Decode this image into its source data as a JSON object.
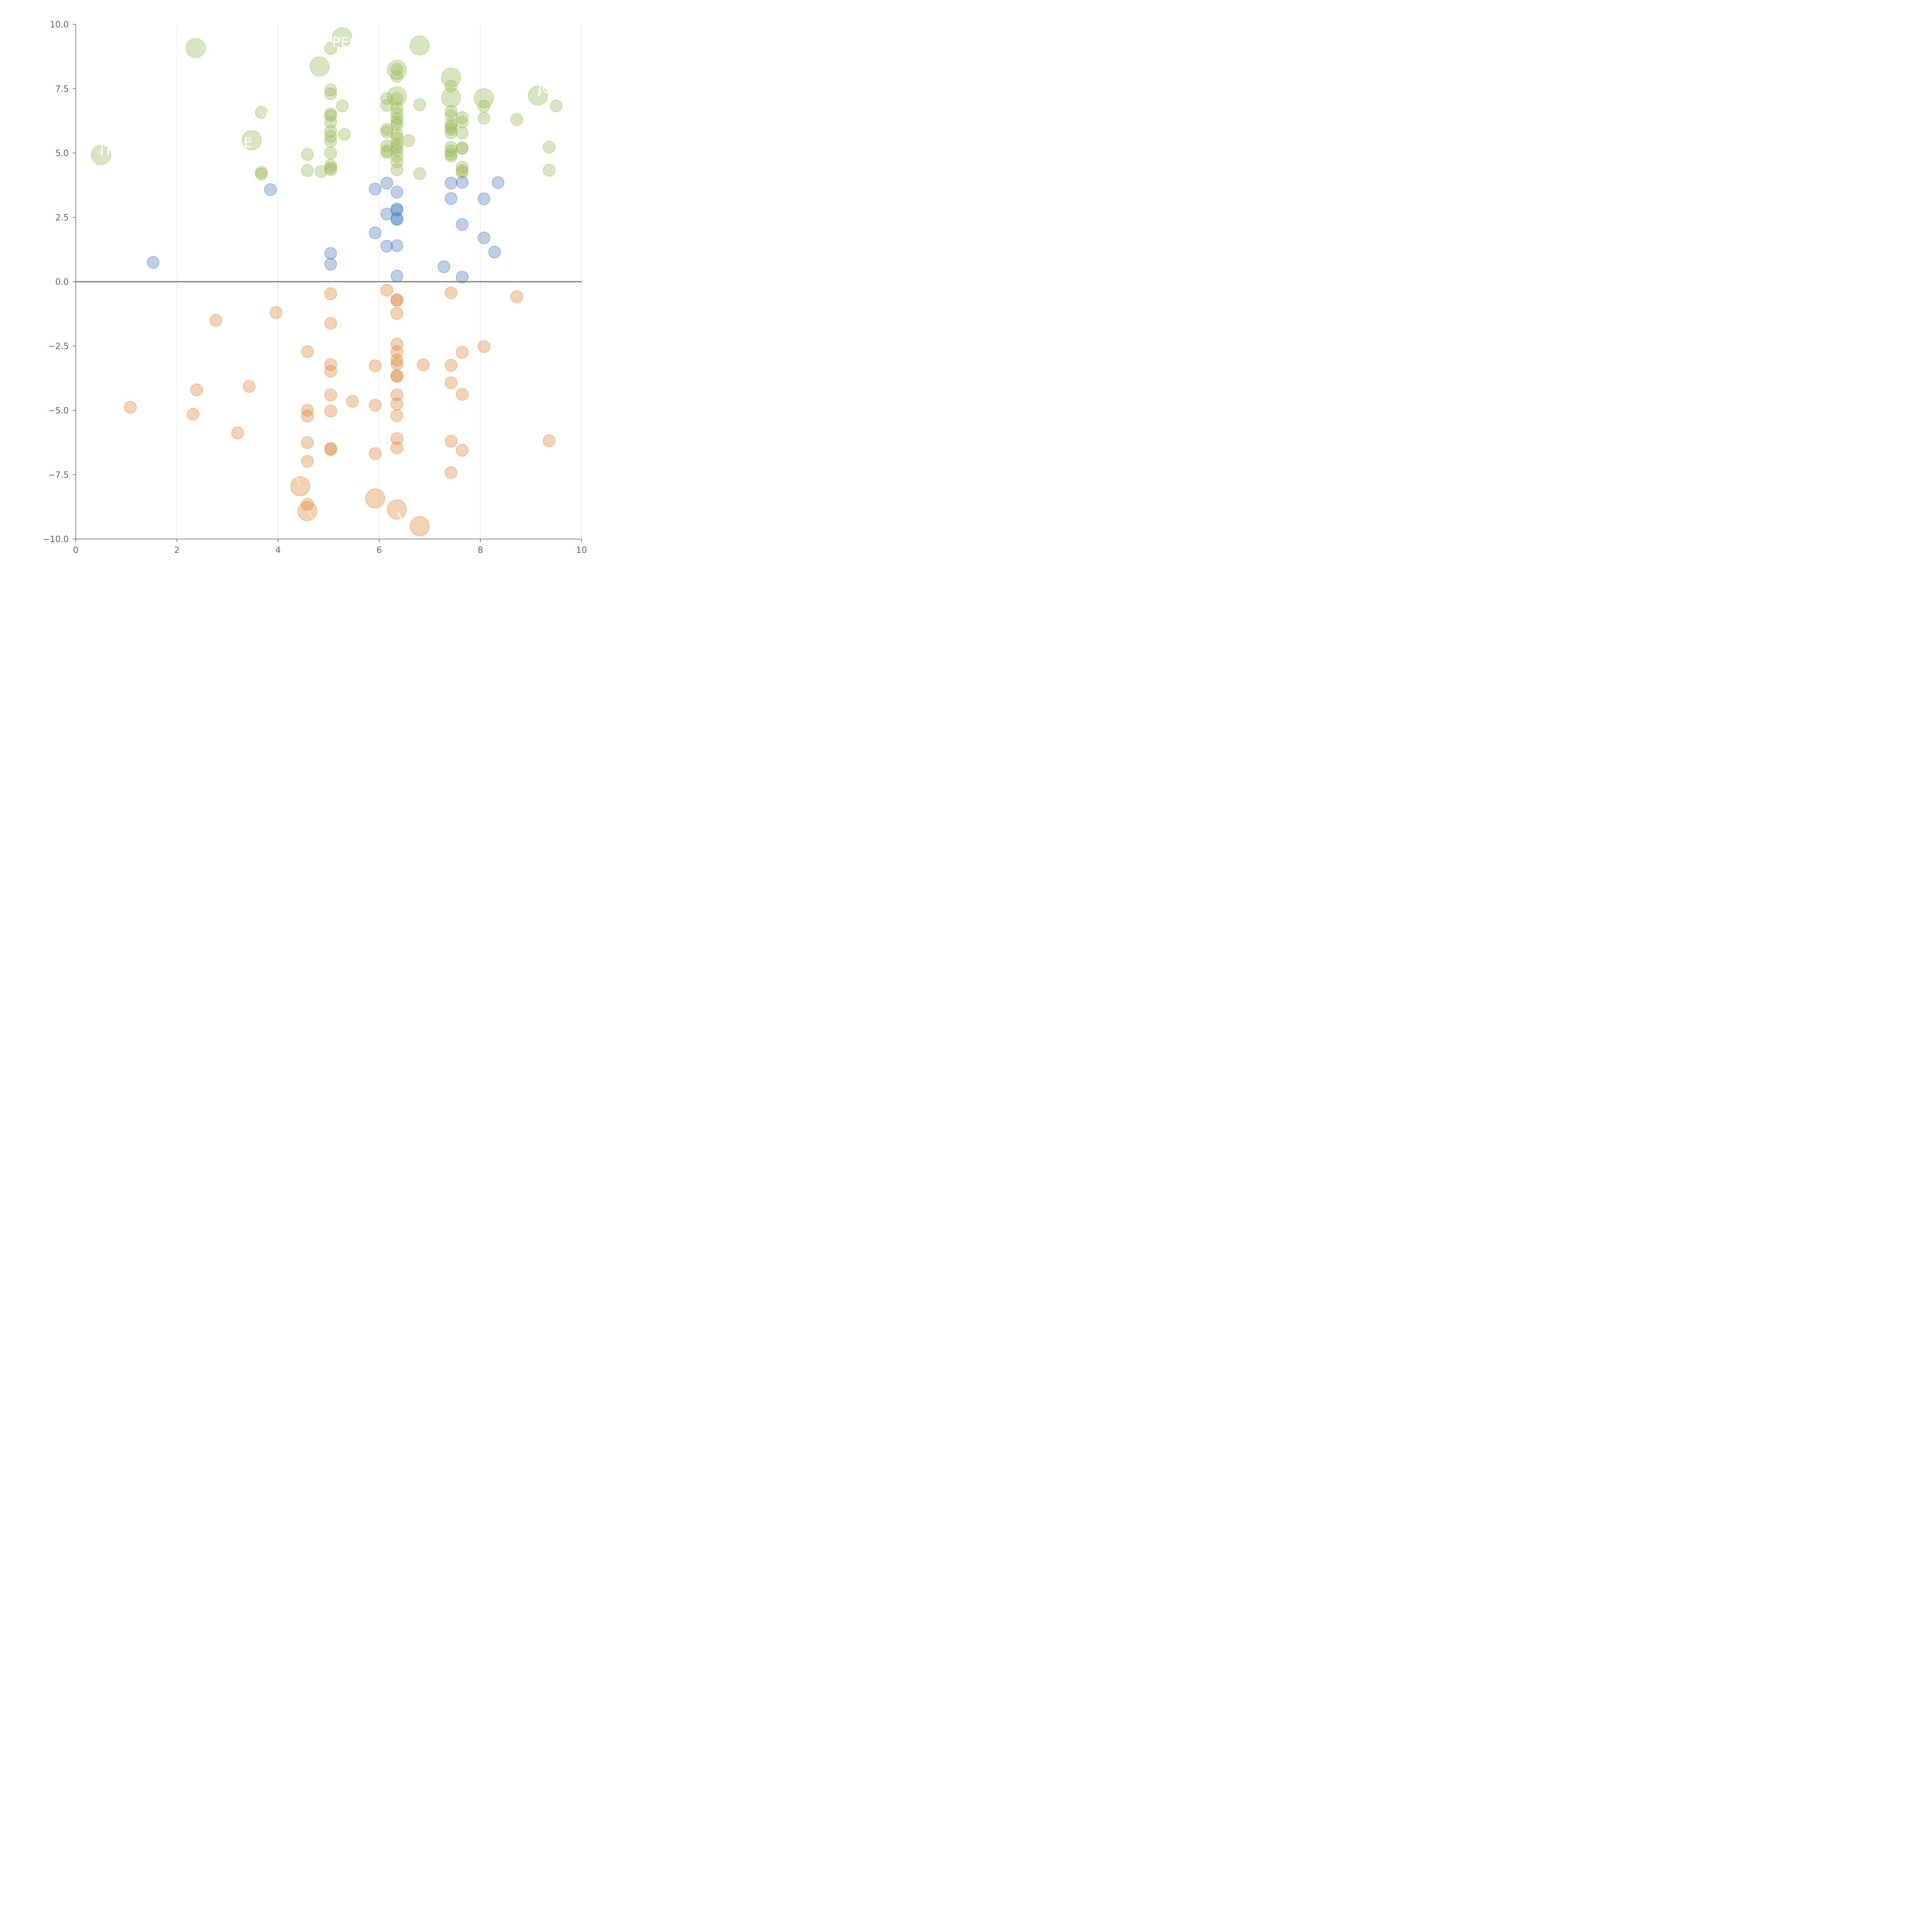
{
  "chart_data": {
    "type": "scatter",
    "title": "",
    "xlabel": "",
    "ylabel": "",
    "xlim": [
      0,
      10
    ],
    "ylim": [
      -10,
      10
    ],
    "x_ticks": [
      0,
      2,
      4,
      6,
      8,
      10
    ],
    "x_tick_labels": [
      "0",
      "2",
      "4",
      "6",
      "8",
      "10"
    ],
    "y_ticks": [
      10,
      7.5,
      5,
      2.5,
      0,
      -2.5,
      -5,
      -7.5,
      -10
    ],
    "y_tick_labels": [
      "10.0",
      "7.5",
      "5.0",
      "2.5",
      "0.0",
      "−2.5",
      "−5.0",
      "−7.5",
      "−10.0"
    ],
    "grid": "vertical gridlines at x ticks",
    "zero_line": 0,
    "colors": {
      "positive": "#9bbb59",
      "neutral": "#4f81bd",
      "negative": "#e08a3c"
    },
    "series": [
      {
        "name": "positive",
        "color": "#9bbb59",
        "points": [
          [
            2.37,
            9.08,
            1.6
          ],
          [
            5.27,
            9.5,
            1.6
          ],
          [
            6.8,
            9.18,
            1.6
          ],
          [
            4.82,
            8.36,
            1.6
          ],
          [
            6.35,
            8.23,
            1.6
          ],
          [
            7.42,
            7.93,
            1.6
          ],
          [
            6.35,
            7.2,
            1.6
          ],
          [
            7.42,
            7.15,
            1.6
          ],
          [
            8.07,
            7.13,
            1.6
          ],
          [
            9.14,
            7.23,
            1.6
          ],
          [
            3.48,
            5.5,
            1.6
          ],
          [
            0.5,
            4.92,
            1.6
          ],
          [
            5.04,
            9.06,
            1
          ],
          [
            6.35,
            8.25,
            1
          ],
          [
            6.35,
            7.98,
            1
          ],
          [
            7.42,
            7.6,
            1
          ],
          [
            5.04,
            7.45,
            1
          ],
          [
            5.04,
            7.3,
            1
          ],
          [
            6.15,
            7.12,
            1
          ],
          [
            6.35,
            7.12,
            1
          ],
          [
            6.15,
            6.85,
            1
          ],
          [
            5.27,
            6.83,
            1
          ],
          [
            6.8,
            6.88,
            1
          ],
          [
            8.07,
            6.82,
            1
          ],
          [
            9.5,
            6.83,
            1
          ],
          [
            3.67,
            6.58,
            1
          ],
          [
            6.35,
            6.75,
            1
          ],
          [
            6.35,
            6.55,
            1
          ],
          [
            7.42,
            6.62,
            1
          ],
          [
            7.42,
            6.45,
            1
          ],
          [
            5.04,
            6.52,
            1
          ],
          [
            5.04,
            6.45,
            1
          ],
          [
            6.35,
            6.35,
            1
          ],
          [
            6.35,
            6.2,
            1
          ],
          [
            6.35,
            6.1,
            1
          ],
          [
            7.64,
            6.38,
            1
          ],
          [
            7.64,
            6.2,
            1
          ],
          [
            8.07,
            6.35,
            1
          ],
          [
            8.72,
            6.3,
            1
          ],
          [
            5.04,
            6.2,
            1
          ],
          [
            7.42,
            6.12,
            1
          ],
          [
            7.42,
            6.02,
            1
          ],
          [
            7.42,
            5.92,
            1
          ],
          [
            6.15,
            5.92,
            1
          ],
          [
            6.15,
            5.82,
            1
          ],
          [
            7.42,
            5.78,
            1
          ],
          [
            7.64,
            5.78,
            1
          ],
          [
            5.04,
            5.85,
            1
          ],
          [
            5.31,
            5.72,
            1
          ],
          [
            6.35,
            5.72,
            1
          ],
          [
            6.35,
            5.58,
            1
          ],
          [
            5.04,
            5.65,
            1
          ],
          [
            6.58,
            5.48,
            1
          ],
          [
            5.04,
            5.45,
            1
          ],
          [
            6.35,
            5.35,
            1
          ],
          [
            6.35,
            5.22,
            1
          ],
          [
            6.15,
            5.28,
            1
          ],
          [
            7.42,
            5.22,
            1
          ],
          [
            7.64,
            5.2,
            1
          ],
          [
            7.64,
            5.18,
            1
          ],
          [
            9.36,
            5.23,
            1
          ],
          [
            6.35,
            5.1,
            1
          ],
          [
            6.15,
            5.08,
            1
          ],
          [
            7.42,
            5.08,
            1
          ],
          [
            6.15,
            5.02,
            1
          ],
          [
            5.04,
            5.0,
            1
          ],
          [
            4.58,
            4.95,
            1
          ],
          [
            7.42,
            4.95,
            1
          ],
          [
            7.42,
            4.88,
            1
          ],
          [
            6.35,
            4.88,
            1
          ],
          [
            6.35,
            4.65,
            1
          ],
          [
            5.04,
            4.52,
            1
          ],
          [
            7.64,
            4.45,
            1
          ],
          [
            5.04,
            4.42,
            1
          ],
          [
            5.04,
            4.35,
            1
          ],
          [
            6.35,
            4.35,
            1
          ],
          [
            7.64,
            4.32,
            1
          ],
          [
            7.64,
            4.25,
            1
          ],
          [
            4.58,
            4.32,
            1
          ],
          [
            4.85,
            4.28,
            1
          ],
          [
            3.67,
            4.25,
            1
          ],
          [
            3.67,
            4.18,
            1
          ],
          [
            6.8,
            4.2,
            1
          ],
          [
            9.36,
            4.33,
            1
          ]
        ]
      },
      {
        "name": "neutral",
        "color": "#4f81bd",
        "points": [
          [
            3.85,
            3.58,
            1
          ],
          [
            5.92,
            3.6,
            1
          ],
          [
            6.15,
            3.83,
            1
          ],
          [
            7.42,
            3.83,
            1
          ],
          [
            7.64,
            3.86,
            1
          ],
          [
            8.35,
            3.85,
            1
          ],
          [
            6.35,
            3.48,
            1
          ],
          [
            7.42,
            3.23,
            1
          ],
          [
            8.07,
            3.22,
            1
          ],
          [
            6.35,
            2.83,
            1
          ],
          [
            6.35,
            2.78,
            1
          ],
          [
            6.15,
            2.63,
            1
          ],
          [
            6.35,
            2.45,
            1
          ],
          [
            6.35,
            2.42,
            1
          ],
          [
            7.64,
            2.22,
            1
          ],
          [
            5.92,
            1.9,
            1
          ],
          [
            8.07,
            1.7,
            1
          ],
          [
            6.15,
            1.38,
            1
          ],
          [
            6.35,
            1.4,
            1
          ],
          [
            8.28,
            1.15,
            1
          ],
          [
            5.04,
            1.1,
            1
          ],
          [
            1.53,
            0.75,
            1
          ],
          [
            5.04,
            0.68,
            1
          ],
          [
            7.28,
            0.58,
            1
          ],
          [
            6.35,
            0.22,
            1
          ],
          [
            7.64,
            0.18,
            1
          ]
        ]
      },
      {
        "name": "negative",
        "color": "#e08a3c",
        "points": [
          [
            6.15,
            -0.33,
            1
          ],
          [
            7.42,
            -0.43,
            1
          ],
          [
            5.04,
            -0.47,
            1
          ],
          [
            8.72,
            -0.58,
            1
          ],
          [
            6.35,
            -0.7,
            1
          ],
          [
            6.35,
            -0.73,
            1
          ],
          [
            3.96,
            -1.2,
            1
          ],
          [
            6.35,
            -1.23,
            1
          ],
          [
            2.77,
            -1.5,
            1
          ],
          [
            5.04,
            -1.62,
            1
          ],
          [
            8.07,
            -2.52,
            1
          ],
          [
            6.35,
            -2.43,
            1
          ],
          [
            4.58,
            -2.72,
            1
          ],
          [
            6.35,
            -2.73,
            1
          ],
          [
            7.64,
            -2.75,
            1
          ],
          [
            6.35,
            -3.05,
            1
          ],
          [
            6.35,
            -3.2,
            1
          ],
          [
            5.04,
            -3.22,
            1
          ],
          [
            5.92,
            -3.27,
            1
          ],
          [
            6.87,
            -3.23,
            1
          ],
          [
            7.42,
            -3.25,
            1
          ],
          [
            5.04,
            -3.48,
            1
          ],
          [
            6.35,
            -3.65,
            1
          ],
          [
            6.35,
            -3.68,
            1
          ],
          [
            7.42,
            -3.93,
            1
          ],
          [
            3.43,
            -4.07,
            1
          ],
          [
            2.39,
            -4.2,
            1
          ],
          [
            6.35,
            -4.4,
            1
          ],
          [
            5.04,
            -4.4,
            1
          ],
          [
            7.64,
            -4.38,
            1
          ],
          [
            5.47,
            -4.65,
            1
          ],
          [
            6.35,
            -4.75,
            1
          ],
          [
            5.92,
            -4.8,
            1
          ],
          [
            1.08,
            -4.88,
            1
          ],
          [
            4.58,
            -5.0,
            1
          ],
          [
            5.04,
            -5.03,
            1
          ],
          [
            2.32,
            -5.15,
            1
          ],
          [
            4.58,
            -5.22,
            1
          ],
          [
            6.35,
            -5.2,
            1
          ],
          [
            3.2,
            -5.88,
            1
          ],
          [
            6.35,
            -6.1,
            1
          ],
          [
            9.36,
            -6.18,
            1
          ],
          [
            7.42,
            -6.2,
            1
          ],
          [
            4.58,
            -6.25,
            1
          ],
          [
            5.04,
            -6.48,
            1
          ],
          [
            5.04,
            -6.52,
            1
          ],
          [
            6.35,
            -6.45,
            1
          ],
          [
            7.64,
            -6.55,
            1
          ],
          [
            5.92,
            -6.68,
            1
          ],
          [
            4.58,
            -6.98,
            1
          ],
          [
            7.42,
            -7.42,
            1
          ],
          [
            4.58,
            -8.65,
            1
          ],
          [
            4.44,
            -7.95,
            1.6
          ],
          [
            4.58,
            -8.92,
            1.6
          ],
          [
            5.92,
            -8.42,
            1.6
          ],
          [
            6.35,
            -8.85,
            1.6
          ],
          [
            6.8,
            -9.5,
            1.6
          ]
        ]
      }
    ],
    "labels": [
      {
        "text": "PEC",
        "anchor": [
          5.27,
          9.5
        ],
        "at": [
          5.07,
          9.3
        ]
      },
      {
        "text": "JC",
        "anchor": [
          9.14,
          7.23
        ],
        "at": [
          9.14,
          7.5
        ]
      },
      {
        "text": "ITI",
        "anchor": [
          0.5,
          4.92
        ],
        "at": [
          0.48,
          5.1
        ]
      },
      {
        "text": "E",
        "anchor": [
          3.48,
          5.5
        ],
        "at": [
          3.32,
          5.4
        ]
      },
      {
        "text": "I",
        "anchor": [
          3.67,
          6.58
        ],
        "at": [
          3.73,
          6.4
        ]
      },
      {
        "text": "C",
        "anchor": [
          4.58,
          -8.92
        ],
        "at": [
          4.71,
          -9.25
        ]
      },
      {
        "text": "V",
        "anchor": [
          6.35,
          -8.85
        ],
        "at": [
          6.37,
          -9.2
        ]
      },
      {
        "text": "r",
        "anchor": [
          4.44,
          -7.95
        ],
        "at": [
          4.32,
          -7.45
        ]
      }
    ]
  }
}
